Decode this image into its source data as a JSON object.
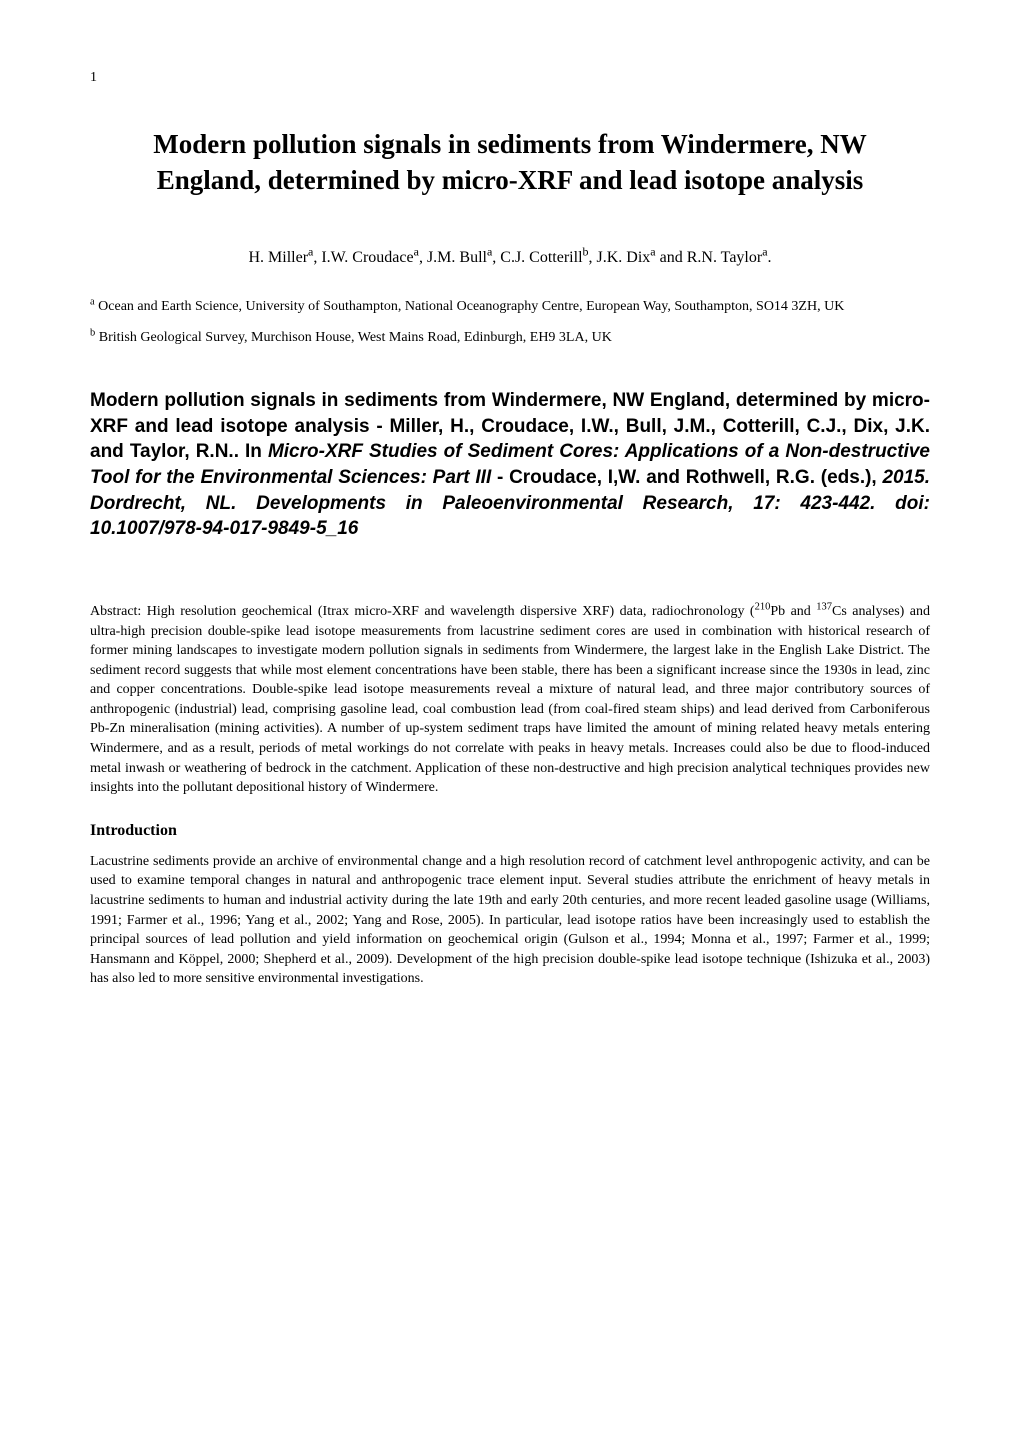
{
  "page_number": "1",
  "title": "Modern pollution signals in sediments from Windermere, NW England, determined by micro-XRF and lead isotope analysis",
  "authors_html": "H. Miller<sup>a</sup>, I.W. Croudace<sup>a</sup>, J.M. Bull<sup>a</sup>, C.J. Cotterill<sup>b</sup>, J.K. Dix<sup>a</sup> and R.N. Taylor<sup>a</sup>.",
  "affiliations": [
    {
      "marker": "a",
      "text_html": "<sup>a</sup> Ocean and Earth Science, University of Southampton, National Oceanography Centre, European Way, Southampton, SO14 3ZH, UK"
    },
    {
      "marker": "b",
      "text_html": "<sup>b</sup> British Geological Survey, Murchison House, West Mains Road, Edinburgh, EH9 3LA, UK"
    }
  ],
  "citation_html": "Modern pollution signals in sediments from Windermere, NW England, determined by micro-XRF and lead isotope analysis - Miller, H., Croudace, I.W., Bull, J.M., Cotterill, C.J., Dix, J.K. and Taylor, R.N.. In <span class=\"italic\">Micro-XRF Studies of Sediment Cores: Applications of a Non-destructive Tool for the Environmental Sciences: Part III</span> - Croudace, I,W. and Rothwell, R.G. (eds.), <span class=\"italic\">2015. Dordrecht, NL. Developments in Paleoenvironmental Research, 17: 423-442.</span> <span class=\"italic\">doi: 10.1007/978-94-017-9849-5_16</span>",
  "abstract_html": "Abstract: High resolution geochemical (Itrax micro-XRF and wavelength dispersive XRF) data, radiochronology (<sup>210</sup>Pb and <sup>137</sup>Cs analyses) and ultra-high precision double-spike lead isotope measurements from lacustrine sediment cores are used in combination with historical research of former mining landscapes to investigate modern pollution signals in sediments from Windermere, the largest lake in the English Lake District. The sediment record suggests that while most element concentrations have been stable, there has been a significant increase since the 1930s in lead, zinc and copper concentrations. Double-spike lead isotope measurements reveal a mixture of natural lead, and three major contributory sources of anthropogenic (industrial) lead, comprising gasoline lead, coal combustion lead (from coal-fired steam ships) and lead derived from Carboniferous Pb-Zn mineralisation (mining activities). A number of up-system sediment traps have limited the amount of mining related heavy metals entering Windermere, and as a result, periods of metal workings do not correlate with peaks in heavy metals. Increases could also be due to flood-induced metal inwash or weathering of bedrock in the catchment. Application of these non-destructive and high precision analytical techniques provides new insights into the pollutant depositional history of Windermere.",
  "sections": [
    {
      "heading": "Introduction",
      "body": "Lacustrine sediments provide an archive of environmental change and a high resolution record of catchment level anthropogenic activity, and can be used to examine temporal changes in natural and anthropogenic trace element input. Several studies attribute the enrichment of heavy metals in lacustrine sediments to human and industrial activity during the late 19th and early 20th centuries, and more recent leaded gasoline usage (Williams, 1991; Farmer et al., 1996; Yang et al., 2002; Yang and Rose, 2005). In particular, lead isotope ratios have been increasingly used to establish the principal sources of lead pollution and yield information on geochemical origin (Gulson et al., 1994; Monna et al., 1997; Farmer et al., 1999; Hansmann and Köppel, 2000; Shepherd et al., 2009). Development of the high precision double-spike lead isotope technique (Ishizuka et al., 2003) has also led to more sensitive environmental investigations."
    }
  ]
}
